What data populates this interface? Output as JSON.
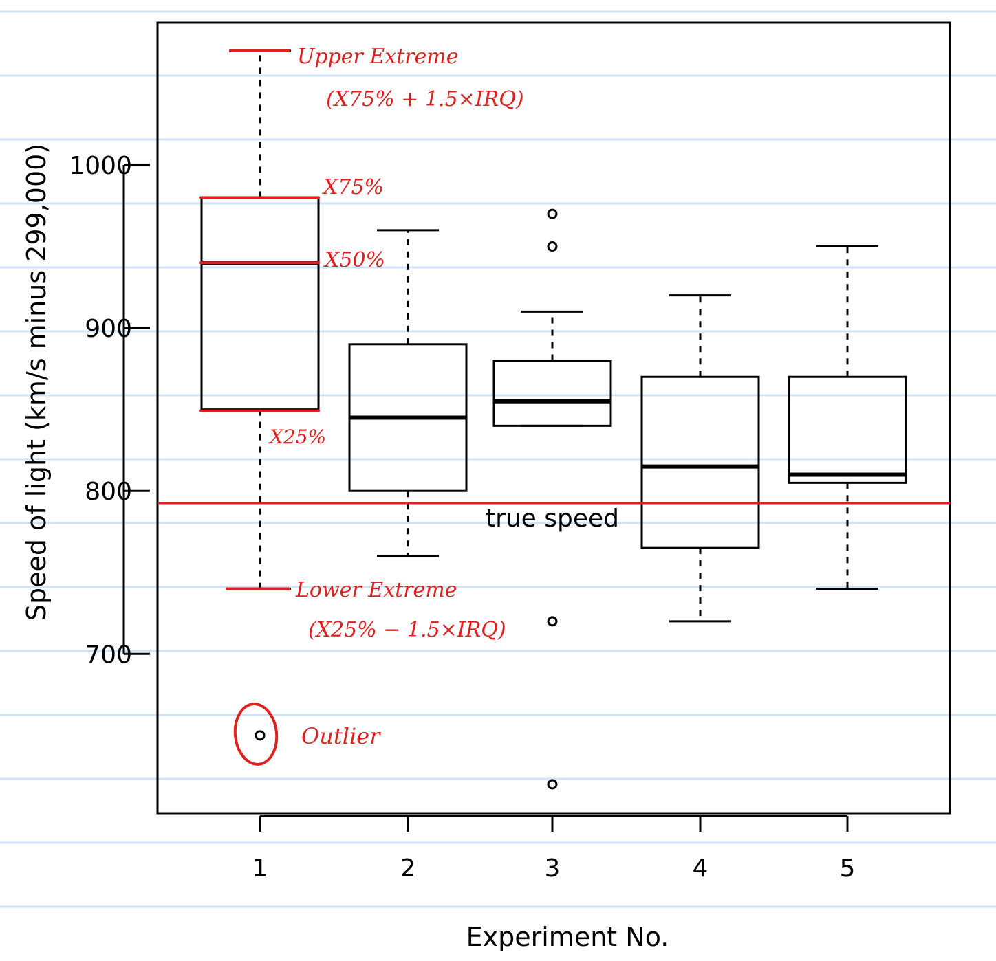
{
  "chart_data": {
    "type": "box",
    "xlabel": "Experiment No.",
    "ylabel": "Speed of light (km/s minus 299,000)",
    "categories": [
      "1",
      "2",
      "3",
      "4",
      "5"
    ],
    "ylim": [
      600,
      1090
    ],
    "yticks": [
      700,
      800,
      900,
      1000
    ],
    "grid": false,
    "boxes": [
      {
        "category": "1",
        "whisker_low": 740,
        "q1": 850,
        "median": 940,
        "q3": 980,
        "whisker_high": 1070,
        "outliers": [
          650
        ]
      },
      {
        "category": "2",
        "whisker_low": 760,
        "q1": 800,
        "median": 845,
        "q3": 890,
        "whisker_high": 960,
        "outliers": []
      },
      {
        "category": "3",
        "whisker_low": 840,
        "q1": 840,
        "median": 855,
        "q3": 880,
        "whisker_high": 910,
        "outliers": [
          970,
          950,
          720,
          620
        ]
      },
      {
        "category": "4",
        "whisker_low": 720,
        "q1": 765,
        "median": 815,
        "q3": 870,
        "whisker_high": 920,
        "outliers": []
      },
      {
        "category": "5",
        "whisker_low": 740,
        "q1": 805,
        "median": 810,
        "q3": 870,
        "whisker_high": 950,
        "outliers": []
      }
    ],
    "reference_line": {
      "value": 792.5,
      "label": "true speed",
      "color": "#e0201e"
    },
    "annotations": [
      {
        "text": "Upper Extreme",
        "refers_to": "upper whisker (experiment 1)"
      },
      {
        "text": "(X75% + 1.5×IRQ)",
        "refers_to": "upper whisker (experiment 1)"
      },
      {
        "text": "X75%",
        "refers_to": "third quartile (experiment 1)"
      },
      {
        "text": "X50%",
        "refers_to": "median (experiment 1)"
      },
      {
        "text": "X25%",
        "refers_to": "first quartile (experiment 1)"
      },
      {
        "text": "Lower Extreme",
        "refers_to": "lower whisker (experiment 1)"
      },
      {
        "text": "(X25% − 1.5×IRQ)",
        "refers_to": "lower whisker (experiment 1)"
      },
      {
        "text": "Outlier",
        "refers_to": "outlier (experiment 1)"
      }
    ],
    "annotation_color": "#e0201e",
    "background": "ruled notebook paper"
  }
}
